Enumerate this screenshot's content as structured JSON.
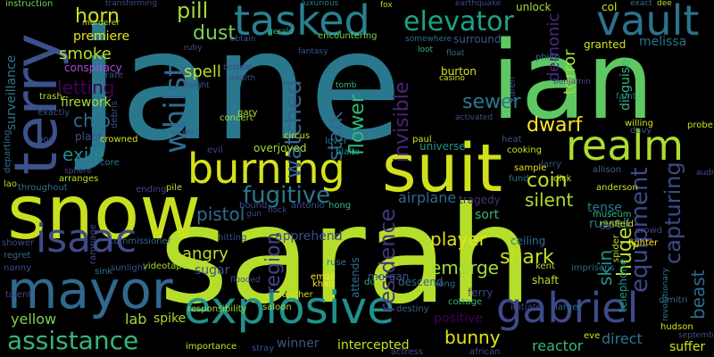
{
  "words": [
    {
      "text": "sarah",
      "color": "#b5de2b"
    },
    {
      "text": "jane",
      "color": "#2a788e"
    },
    {
      "text": "ian",
      "color": "#5ec962"
    },
    {
      "text": "snow",
      "color": "#c8e020"
    },
    {
      "text": "suit",
      "color": "#d0e11c"
    },
    {
      "text": "terry",
      "color": "#3b528b"
    },
    {
      "text": "mayor",
      "color": "#31688e"
    },
    {
      "text": "burning",
      "color": "#d5e21a"
    },
    {
      "text": "explosive",
      "color": "#21918c"
    },
    {
      "text": "tasked",
      "color": "#26828e"
    },
    {
      "text": "realm",
      "color": "#addc30"
    },
    {
      "text": "vault",
      "color": "#2c728e"
    },
    {
      "text": "gabriel",
      "color": "#3e4989"
    },
    {
      "text": "isaac",
      "color": "#3e4a89"
    },
    {
      "text": "assistance",
      "color": "#35b779"
    },
    {
      "text": "elevator",
      "color": "#1fa187"
    },
    {
      "text": "whilst",
      "color": "#2f6c8e"
    },
    {
      "text": "fugitive",
      "color": "#2a788e"
    },
    {
      "text": "residence",
      "color": "#46327e"
    },
    {
      "text": "pill",
      "color": "#a0da39"
    },
    {
      "text": "horn",
      "color": "#d2e21b"
    },
    {
      "text": "dust",
      "color": "#7ad151"
    },
    {
      "text": "premiere",
      "color": "#e5e419"
    },
    {
      "text": "smoke",
      "color": "#b8de29"
    },
    {
      "text": "letting",
      "color": "#440154"
    },
    {
      "text": "firework",
      "color": "#a8db34"
    },
    {
      "text": "chip",
      "color": "#2d708e"
    },
    {
      "text": "exile",
      "color": "#24868e"
    },
    {
      "text": "plant",
      "color": "#3b528b"
    },
    {
      "text": "spell",
      "color": "#bddf26"
    },
    {
      "text": "watched",
      "color": "#33638d"
    },
    {
      "text": "stark",
      "color": "#31688e"
    },
    {
      "text": "flower",
      "color": "#35b779"
    },
    {
      "text": "invisible",
      "color": "#482677"
    },
    {
      "text": "sewer",
      "color": "#2a788e"
    },
    {
      "text": "dwarf",
      "color": "#fde725"
    },
    {
      "text": "coin",
      "color": "#c2df23"
    },
    {
      "text": "silent",
      "color": "#b0dd2f"
    },
    {
      "text": "demonic",
      "color": "#472d7b"
    },
    {
      "text": "terror",
      "color": "#a2da37"
    },
    {
      "text": "capturing",
      "color": "#3e4a89"
    },
    {
      "text": "equipment",
      "color": "#3e4989"
    },
    {
      "text": "huge",
      "color": "#bade28"
    },
    {
      "text": "beast",
      "color": "#31688e"
    },
    {
      "text": "skin",
      "color": "#1f978b"
    },
    {
      "text": "emerge",
      "color": "#a5db36"
    },
    {
      "text": "shark",
      "color": "#c5e021"
    },
    {
      "text": "player",
      "color": "#dde318"
    },
    {
      "text": "region",
      "color": "#414487"
    },
    {
      "text": "pistol",
      "color": "#2f6c8e"
    },
    {
      "text": "angry",
      "color": "#c0df25"
    },
    {
      "text": "lab",
      "color": "#a0da39"
    },
    {
      "text": "yellow",
      "color": "#7ad151"
    },
    {
      "text": "spike",
      "color": "#addc30"
    },
    {
      "text": "bunny",
      "color": "#e2e418"
    },
    {
      "text": "positive",
      "color": "#440154"
    },
    {
      "text": "reactor",
      "color": "#35b779"
    },
    {
      "text": "direct",
      "color": "#2a788e"
    },
    {
      "text": "suffer",
      "color": "#d0e11c"
    },
    {
      "text": "winner",
      "color": "#38588c"
    },
    {
      "text": "intercepted",
      "color": "#c5e021"
    },
    {
      "text": "apprehend",
      "color": "#3e4a89"
    },
    {
      "text": "airplane",
      "color": "#31688e"
    },
    {
      "text": "tragedy",
      "color": "#46327e"
    },
    {
      "text": "sort",
      "color": "#35b779"
    },
    {
      "text": "tense",
      "color": "#2a788e"
    },
    {
      "text": "russell",
      "color": "#2a788e"
    },
    {
      "text": "melissa",
      "color": "#2c728e"
    },
    {
      "text": "granted",
      "color": "#d2e21b"
    },
    {
      "text": "disguise",
      "color": "#35b779"
    },
    {
      "text": "col",
      "color": "#d5e21a"
    },
    {
      "text": "surveillance",
      "color": "#2a788e"
    },
    {
      "text": "instruction",
      "color": "#7ad151"
    },
    {
      "text": "conspiracy",
      "color": "#ad4ad6"
    },
    {
      "text": "unlock",
      "color": "#a5db36"
    },
    {
      "text": "surround",
      "color": "#38588c"
    },
    {
      "text": "encountering",
      "color": "#7ad151"
    },
    {
      "text": "burton",
      "color": "#d5e21a"
    },
    {
      "text": "sugar",
      "color": "#3b528b"
    },
    {
      "text": "attends",
      "color": "#2c728e"
    },
    {
      "text": "descend",
      "color": "#31688e"
    },
    {
      "text": "morgan",
      "color": "#3b528b"
    },
    {
      "text": "ferry",
      "color": "#3e4989"
    },
    {
      "text": "universe",
      "color": "#1f978b"
    },
    {
      "text": "blake",
      "color": "#1f978b"
    },
    {
      "text": "lover",
      "color": "#2a788e"
    },
    {
      "text": "ceiling",
      "color": "#2c728e"
    },
    {
      "text": "kent",
      "color": "#a0da39"
    },
    {
      "text": "shaft",
      "color": "#b5de2b"
    },
    {
      "text": "crowd",
      "color": "#414487"
    },
    {
      "text": "fighter",
      "color": "#fde725"
    },
    {
      "text": "telephone",
      "color": "#1f978b"
    },
    {
      "text": "revolutionary",
      "color": "#2a788e"
    },
    {
      "text": "dimitri",
      "color": "#33638d"
    },
    {
      "text": "hudson",
      "color": "#d5e21a"
    },
    {
      "text": "renfield",
      "color": "#d2e21b"
    },
    {
      "text": "museum",
      "color": "#35b779"
    },
    {
      "text": "anderson",
      "color": "#c8e020"
    },
    {
      "text": "allison",
      "color": "#33638d"
    },
    {
      "text": "heat",
      "color": "#3b528b"
    },
    {
      "text": "larry",
      "color": "#3b528b"
    },
    {
      "text": "sample",
      "color": "#dde318"
    },
    {
      "text": "cooking",
      "color": "#c8e020"
    },
    {
      "text": "paul",
      "color": "#d5e21a"
    },
    {
      "text": "overjoyed",
      "color": "#a5db36"
    },
    {
      "text": "circus",
      "color": "#c5e021"
    },
    {
      "text": "evil",
      "color": "#414487"
    },
    {
      "text": "concert",
      "color": "#a0da39"
    },
    {
      "text": "gary",
      "color": "#b8de29"
    },
    {
      "text": "crowned",
      "color": "#d0e11c"
    },
    {
      "text": "debris",
      "color": "#3b528b"
    },
    {
      "text": "exactly",
      "color": "#3e4a89"
    },
    {
      "text": "trash",
      "color": "#b8de29"
    },
    {
      "text": "rafe",
      "color": "#3b528b"
    },
    {
      "text": "pod",
      "color": "#3b528b"
    },
    {
      "text": "core",
      "color": "#2a788e"
    },
    {
      "text": "departing",
      "color": "#2c728e"
    },
    {
      "text": "lao",
      "color": "#b8de29"
    },
    {
      "text": "throughout",
      "color": "#2c728e"
    },
    {
      "text": "arranges",
      "color": "#b8de29"
    },
    {
      "text": "ending",
      "color": "#414487"
    },
    {
      "text": "pile",
      "color": "#b8de29"
    },
    {
      "text": "bound",
      "color": "#3e4a89"
    },
    {
      "text": "antonio",
      "color": "#3b528b"
    },
    {
      "text": "hong",
      "color": "#35b779"
    },
    {
      "text": "rampage",
      "color": "#3e4a89"
    },
    {
      "text": "commissioner",
      "color": "#31688e"
    },
    {
      "text": "videotape",
      "color": "#a0da39"
    },
    {
      "text": "hitting",
      "color": "#3e4a89"
    },
    {
      "text": "shower",
      "color": "#3e4a89"
    },
    {
      "text": "regret",
      "color": "#31688e"
    },
    {
      "text": "sink",
      "color": "#2c728e"
    },
    {
      "text": "sunlight",
      "color": "#3b528b"
    },
    {
      "text": "nanny",
      "color": "#3e4a89"
    },
    {
      "text": "talent",
      "color": "#3e4a89"
    },
    {
      "text": "importance",
      "color": "#c5e021"
    },
    {
      "text": "stray",
      "color": "#3e4a89"
    },
    {
      "text": "responsibility",
      "color": "#a5db36"
    },
    {
      "text": "saloon",
      "color": "#a5db36"
    },
    {
      "text": "rancher",
      "color": "#c5e021"
    },
    {
      "text": "email",
      "color": "#fde725"
    },
    {
      "text": "khan",
      "color": "#fde725"
    },
    {
      "text": "ruse",
      "color": "#2c728e"
    },
    {
      "text": "kong",
      "color": "#31688e"
    },
    {
      "text": "du",
      "color": "#35b779"
    },
    {
      "text": "destiny",
      "color": "#33638d"
    },
    {
      "text": "initiate",
      "color": "#3e4a89"
    },
    {
      "text": "larger",
      "color": "#2c728e"
    },
    {
      "text": "actress",
      "color": "#3e4a89"
    },
    {
      "text": "african",
      "color": "#3e4a89"
    },
    {
      "text": "eve",
      "color": "#d0e11c"
    },
    {
      "text": "imprisons",
      "color": "#31688e"
    },
    {
      "text": "cottage",
      "color": "#35b779"
    },
    {
      "text": "da",
      "color": "#3b528b"
    },
    {
      "text": "spider",
      "color": "#b5de2b"
    },
    {
      "text": "karen",
      "color": "#3b528b"
    },
    {
      "text": "philip",
      "color": "#31688e"
    },
    {
      "text": "fund",
      "color": "#2c728e"
    },
    {
      "text": "dick",
      "color": "#d0e11c"
    },
    {
      "text": "willing",
      "color": "#d0e11c"
    },
    {
      "text": "davy",
      "color": "#3b528b"
    },
    {
      "text": "probe",
      "color": "#c5e021"
    },
    {
      "text": "faint",
      "color": "#2c728e"
    },
    {
      "text": "murderer",
      "color": "#b8de29"
    },
    {
      "text": "transforming",
      "color": "#3e4a89"
    },
    {
      "text": "gerald",
      "color": "#35b779"
    },
    {
      "text": "luxurious",
      "color": "#2a788e"
    },
    {
      "text": "fox",
      "color": "#b5de2b"
    },
    {
      "text": "earthquake",
      "color": "#3e4a89"
    },
    {
      "text": "exact",
      "color": "#2c728e"
    },
    {
      "text": "dee",
      "color": "#b8de29"
    },
    {
      "text": "somewhere",
      "color": "#2c728e"
    },
    {
      "text": "obtain",
      "color": "#3b528b"
    },
    {
      "text": "ruby",
      "color": "#3b528b"
    },
    {
      "text": "loot",
      "color": "#35b779"
    },
    {
      "text": "float",
      "color": "#31688e"
    },
    {
      "text": "tomb",
      "color": "#35b779"
    },
    {
      "text": "casino",
      "color": "#d2e21b"
    },
    {
      "text": "activated",
      "color": "#3b528b"
    },
    {
      "text": "fantasy",
      "color": "#3b528b"
    },
    {
      "text": "wealth",
      "color": "#3e4a89"
    },
    {
      "text": "bottom",
      "color": "#3e4a89"
    },
    {
      "text": "height",
      "color": "#3b528b"
    },
    {
      "text": "sphere",
      "color": "#3e4a89"
    },
    {
      "text": "benjamin",
      "color": "#3e4a89"
    },
    {
      "text": "september",
      "color": "#3e4a89"
    },
    {
      "text": "audrey",
      "color": "#3b528b"
    },
    {
      "text": "flock",
      "color": "#3e4a89"
    },
    {
      "text": "flooded",
      "color": "#3e4a89"
    },
    {
      "text": "wu",
      "color": "#3b528b"
    },
    {
      "text": "gun",
      "color": "#3e4a89"
    }
  ]
}
